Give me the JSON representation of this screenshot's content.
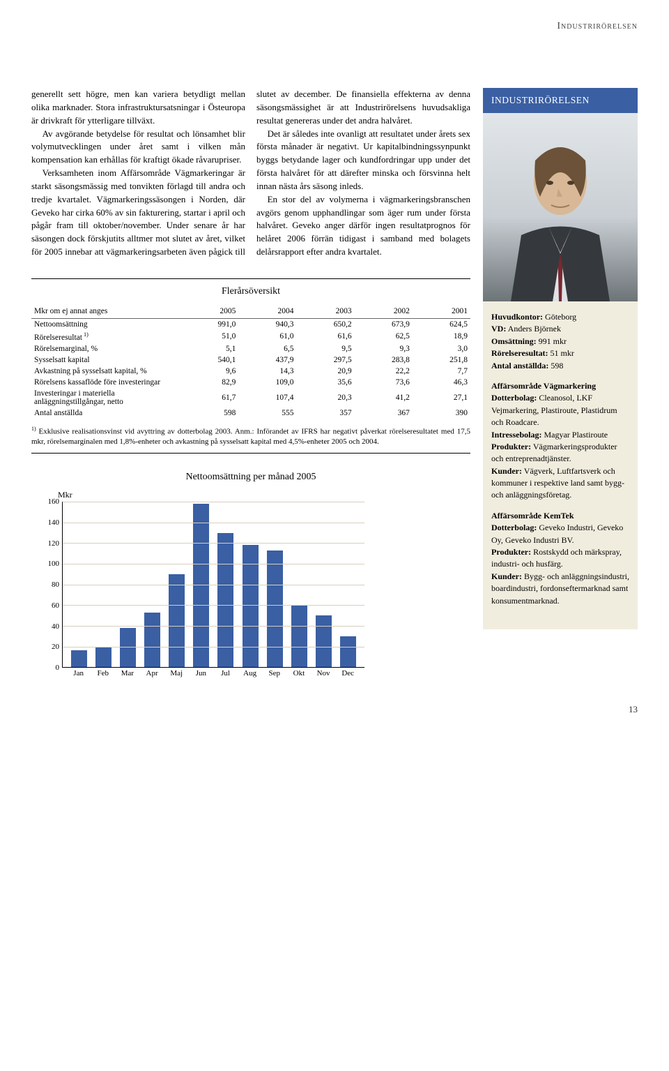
{
  "header": {
    "title": "Industrirörelsen"
  },
  "body": {
    "p1": "generellt sett högre, men kan variera betydligt mellan olika marknader. Stora infrastruktursatsningar i Östeuropa är drivkraft för ytterligare tillväxt.",
    "p2": "Av avgörande betydelse för resultat och lönsamhet blir volymutvecklingen under året samt i vilken mån kompensation kan erhållas för kraftigt ökade råvarupriser.",
    "p3": "Verksamheten inom Affärsområde Vägmarkeringar är starkt säsongsmässig med tonvikten förlagd till andra och tredje kvartalet. Vägmarkeringssäsongen i Norden, där Geveko har cirka 60% av sin fakturering, startar i april och pågår fram till oktober/november. Under senare år har säsongen dock förskjutits alltmer mot slutet av året, vilket för 2005 innebar att vägmarkeringsarbeten även pågick till slutet av december. De finansiella effekterna av denna säsongsmässighet är att Industrirörelsens huvudsakliga resultat genereras under det andra halvåret.",
    "p4": "Det är således inte ovanligt att resultatet under årets sex första månader är negativt. Ur kapitalbindningssynpunkt byggs betydande lager och kundfordringar upp under det första halvåret för att därefter minska och försvinna helt innan nästa års säsong inleds.",
    "p5": "En stor del av volymerna i vägmarkeringsbranschen avgörs genom upphandlingar som äger rum under första halvåret. Geveko anger därför ingen resultatprognos för helåret 2006 förrän tidigast i samband med bolagets delårsrapport efter andra kvartalet."
  },
  "table": {
    "title": "Flerårsöversikt",
    "header_label": "Mkr om ej annat anges",
    "years": [
      "2005",
      "2004",
      "2003",
      "2002",
      "2001"
    ],
    "rows": [
      {
        "label": "Nettoomsättning",
        "vals": [
          "991,0",
          "940,3",
          "650,2",
          "673,9",
          "624,5"
        ]
      },
      {
        "label": "Rörelseresultat",
        "sup": "1)",
        "vals": [
          "51,0",
          "61,0",
          "61,6",
          "62,5",
          "18,9"
        ]
      },
      {
        "label": "Rörelsemarginal, %",
        "vals": [
          "5,1",
          "6,5",
          "9,5",
          "9,3",
          "3,0"
        ]
      },
      {
        "label": "Sysselsatt kapital",
        "vals": [
          "540,1",
          "437,9",
          "297,5",
          "283,8",
          "251,8"
        ]
      },
      {
        "label": "Avkastning på sysselsatt kapital, %",
        "vals": [
          "9,6",
          "14,3",
          "20,9",
          "22,2",
          "7,7"
        ]
      },
      {
        "label": "Rörelsens kassaflöde före investeringar",
        "vals": [
          "82,9",
          "109,0",
          "35,6",
          "73,6",
          "46,3"
        ]
      },
      {
        "label": "Investeringar i materiella anläggningstillgångar, netto",
        "vals": [
          "61,7",
          "107,4",
          "20,3",
          "41,2",
          "27,1"
        ]
      },
      {
        "label": "Antal anställda",
        "vals": [
          "598",
          "555",
          "357",
          "367",
          "390"
        ]
      }
    ],
    "footnote_sup": "1)",
    "footnote": " Exklusive realisationsvinst vid avyttring av dotterbolag 2003. Anm.: Införandet av IFRS har negativt påverkat rörelseresultatet med 17,5 mkr, rörelsemarginalen med 1,8%-enheter och avkastning på sysselsatt kapital med 4,5%-enheter 2005 och 2004."
  },
  "chart": {
    "title": "Nettoomsättning per månad 2005",
    "type": "bar",
    "y_axis_label": "Mkr",
    "ymax": 160,
    "ytick_step": 20,
    "yticks": [
      0,
      20,
      40,
      60,
      80,
      100,
      120,
      140,
      160
    ],
    "grid_color": "#d8cfbf",
    "bar_color": "#3a5fa3",
    "categories": [
      "Jan",
      "Feb",
      "Mar",
      "Apr",
      "Maj",
      "Jun",
      "Jul",
      "Aug",
      "Sep",
      "Okt",
      "Nov",
      "Dec"
    ],
    "values": [
      16,
      20,
      38,
      53,
      90,
      158,
      130,
      118,
      113,
      60,
      50,
      30
    ]
  },
  "sidebar": {
    "title": "INDUSTRIRÖRELSEN",
    "facts": {
      "hq_label": "Huvudkontor:",
      "hq": " Göteborg",
      "vd_label": "VD:",
      "vd": " Anders Björnek",
      "oms_label": "Omsättning:",
      "oms": " 991 mkr",
      "res_label": "Rörelseresultat:",
      "res": " 51 mkr",
      "emp_label": "Antal anställda:",
      "emp": " 598"
    },
    "sect1": {
      "title": "Affärsområde Vägmarkering",
      "dotter_label": "Dotterbolag:",
      "dotter": " Cleanosol, LKF Vejmarkering, Plastiroute, Plastidrum och Roadcare.",
      "intresse_label": "Intressebolag:",
      "intresse": " Magyar Plastiroute",
      "prod_label": "Produkter:",
      "prod": " Vägmarkeringsprodukter och entreprenadtjänster.",
      "kund_label": "Kunder:",
      "kund": " Vägverk, Luftfartsverk och kommuner i respektive land samt bygg- och anläggningsföretag."
    },
    "sect2": {
      "title": "Affärsområde KemTek",
      "dotter_label": "Dotterbolag:",
      "dotter": " Geveko Industri, Geveko Oy, Geveko Industri BV.",
      "prod_label": "Produkter:",
      "prod": " Rostskydd och märkspray, industri- och husfärg.",
      "kund_label": "Kunder:",
      "kund": " Bygg- och anläggningsindustri, boardindustri, fordonseftermarknad samt konsumentmarknad."
    }
  },
  "page_number": "13"
}
